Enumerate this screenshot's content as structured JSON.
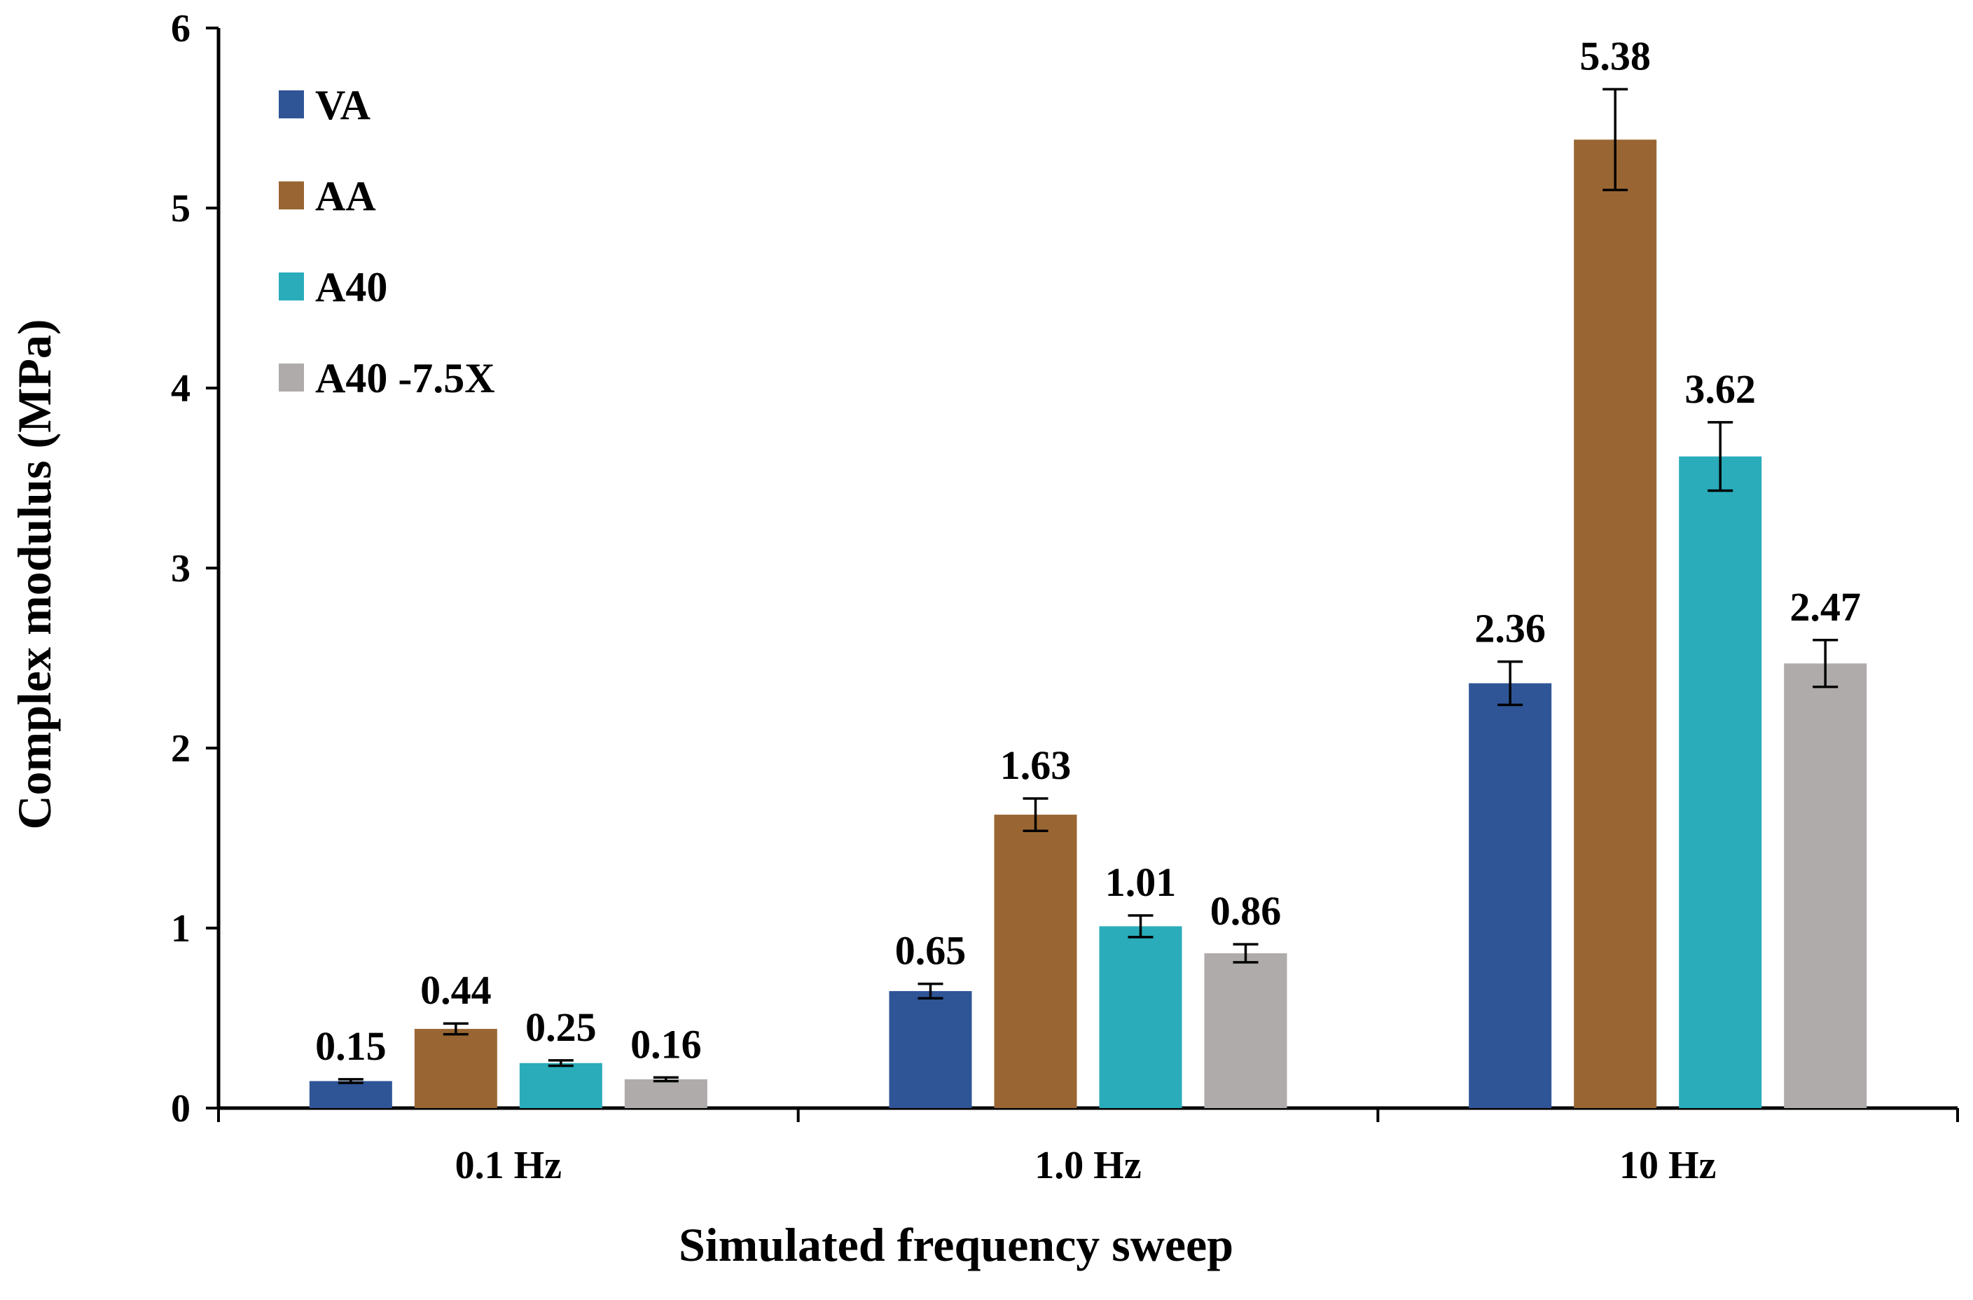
{
  "chart_data": {
    "type": "bar",
    "title": "",
    "xlabel": "Simulated frequency sweep",
    "ylabel": "Complex modulus (MPa)",
    "ylim": [
      0,
      6
    ],
    "yticks": [
      "0",
      "1",
      "2",
      "3",
      "4",
      "5",
      "6"
    ],
    "categories": [
      "0.1 Hz",
      "1.0 Hz",
      "10 Hz"
    ],
    "legend_position": "top-left",
    "grid": false,
    "series": [
      {
        "name": "VA",
        "color": "#2F5597",
        "values": [
          0.15,
          0.65,
          2.36
        ],
        "labels": [
          "0.15",
          "0.65",
          "2.36"
        ],
        "errors": [
          0.01,
          0.04,
          0.12
        ]
      },
      {
        "name": "AA",
        "color": "#996633",
        "values": [
          0.44,
          1.63,
          5.38
        ],
        "labels": [
          "0.44",
          "1.63",
          "5.38"
        ],
        "errors": [
          0.03,
          0.09,
          0.28
        ]
      },
      {
        "name": "A40",
        "color": "#2AACBB",
        "values": [
          0.25,
          1.01,
          3.62
        ],
        "labels": [
          "0.25",
          "1.01",
          "3.62"
        ],
        "errors": [
          0.015,
          0.06,
          0.19
        ]
      },
      {
        "name": "A40 -7.5X",
        "color": "#AFABAB",
        "values": [
          0.16,
          0.86,
          2.47
        ],
        "labels": [
          "0.16",
          "0.86",
          "2.47"
        ],
        "errors": [
          0.01,
          0.05,
          0.13
        ]
      }
    ]
  }
}
